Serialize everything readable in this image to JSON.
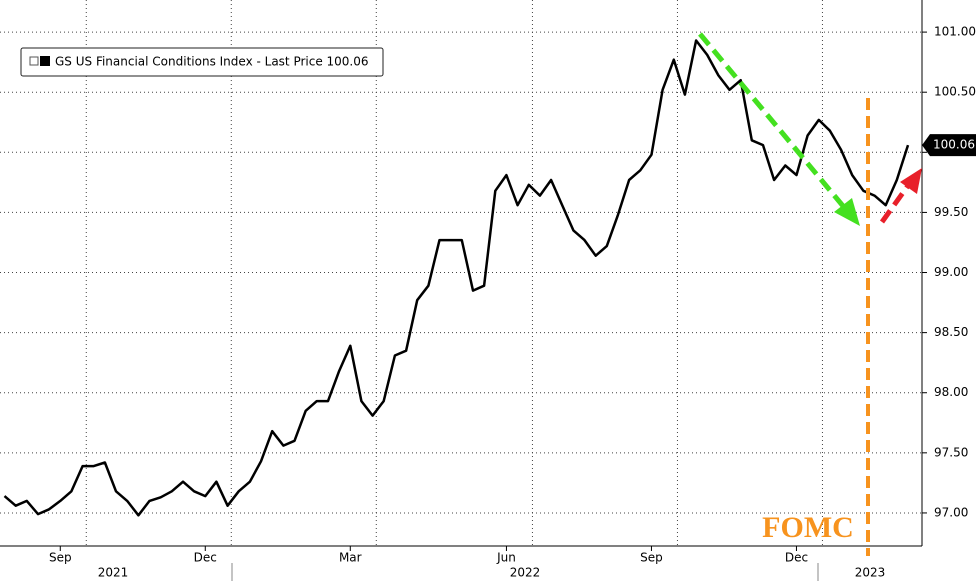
{
  "chart_data": {
    "type": "line",
    "categories": [
      null,
      null,
      null,
      null,
      null,
      "Sep",
      null,
      null,
      null,
      null,
      null,
      null,
      null,
      null,
      null,
      null,
      null,
      null,
      "Dec",
      null,
      null,
      null,
      null,
      null,
      null,
      null,
      null,
      null,
      null,
      null,
      null,
      "Mar",
      null,
      null,
      null,
      null,
      null,
      null,
      null,
      null,
      null,
      null,
      null,
      null,
      null,
      "Jun",
      null,
      null,
      null,
      null,
      null,
      null,
      null,
      null,
      null,
      null,
      null,
      null,
      "Sep",
      null,
      null,
      null,
      null,
      null,
      null,
      null,
      null,
      null,
      null,
      null,
      null,
      "Dec",
      null,
      null,
      null,
      null,
      null,
      null,
      null,
      null,
      null,
      null
    ],
    "x_group_labels": [
      "2021",
      "2022",
      "2023"
    ],
    "series": [
      {
        "name": "GS US Financial Conditions Index - Last Price 100.06",
        "color": "#000000",
        "values": [
          97.14,
          97.06,
          97.1,
          96.99,
          97.03,
          97.1,
          97.18,
          97.39,
          97.39,
          97.42,
          97.18,
          97.1,
          96.98,
          97.1,
          97.13,
          97.18,
          97.26,
          97.18,
          97.14,
          97.26,
          97.06,
          97.18,
          97.26,
          97.43,
          97.68,
          97.56,
          97.6,
          97.85,
          97.93,
          97.93,
          98.18,
          98.39,
          97.93,
          97.81,
          97.93,
          98.31,
          98.35,
          98.77,
          98.89,
          99.27,
          99.27,
          99.27,
          98.85,
          98.89,
          99.68,
          99.81,
          99.56,
          99.73,
          99.64,
          99.77,
          99.56,
          99.35,
          99.27,
          99.14,
          99.22,
          99.48,
          99.77,
          99.85,
          99.98,
          100.52,
          100.77,
          100.48,
          100.93,
          100.81,
          100.64,
          100.52,
          100.6,
          100.1,
          100.06,
          99.77,
          99.89,
          99.81,
          100.14,
          100.27,
          100.18,
          100.02,
          99.81,
          99.68,
          99.64,
          99.56,
          99.77,
          100.06
        ]
      }
    ],
    "last_price": {
      "value": 100.06,
      "label": "100.06"
    },
    "annotation": "FOMC",
    "ylim": [
      96.725,
      101.267
    ],
    "yticks": [
      {
        "value": 97,
        "label": "97.00"
      },
      {
        "value": 97.5,
        "label": "97.50"
      },
      {
        "value": 98,
        "label": "98.00"
      },
      {
        "value": 98.5,
        "label": "98.50"
      },
      {
        "value": 99,
        "label": "99.00"
      },
      {
        "value": 99.5,
        "label": "99.50"
      },
      {
        "value": 100,
        "label": "100.00"
      },
      {
        "value": 100.5,
        "label": "100.50"
      },
      {
        "value": 101,
        "label": "101.00"
      }
    ],
    "grid": true
  }
}
